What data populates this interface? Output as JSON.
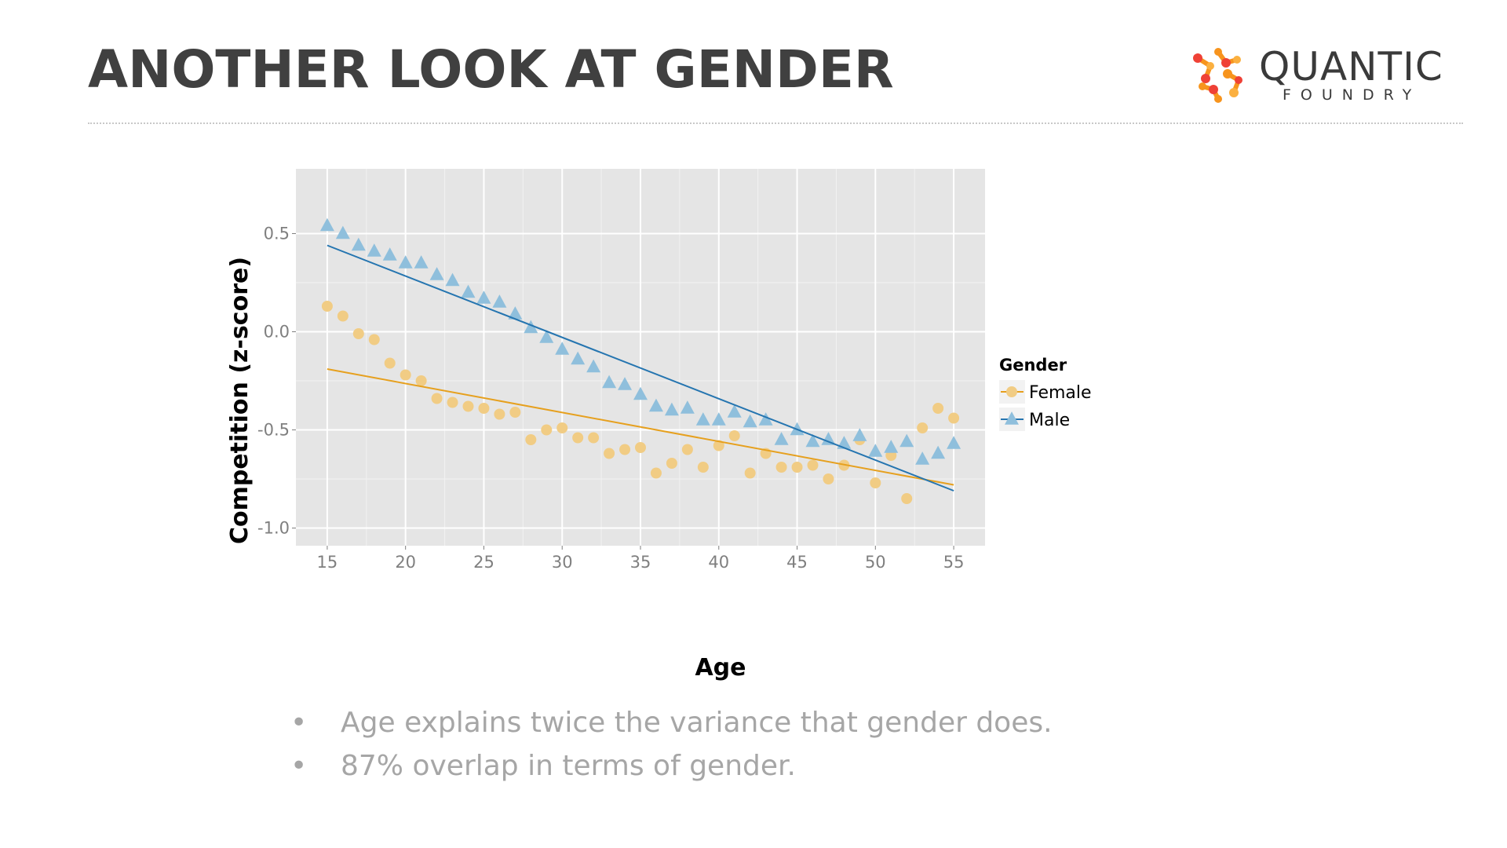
{
  "slide": {
    "title": "ANOTHER LOOK AT GENDER",
    "bullets": [
      "Age explains twice the variance that gender does.",
      "87% overlap in terms of gender."
    ]
  },
  "logo": {
    "word": "QUANTIC",
    "sub": "FOUNDRY",
    "colors": [
      "#f7941d",
      "#ef4136",
      "#fbb040"
    ]
  },
  "chart_data": {
    "type": "scatter",
    "title": "",
    "xlabel": "Age",
    "ylabel": "Competition (z-score)",
    "xlim": [
      13,
      57
    ],
    "ylim": [
      -1.09,
      0.83
    ],
    "x_ticks": [
      15,
      20,
      25,
      30,
      35,
      40,
      45,
      50,
      55
    ],
    "y_ticks": [
      0.5,
      0.0,
      -0.5,
      -1.0
    ],
    "y_tick_labels": [
      "0.5",
      "0.0",
      "-0.5",
      "-1.0"
    ],
    "grid": true,
    "legend": {
      "title": "Gender",
      "placement": "right"
    },
    "series": [
      {
        "name": "Female",
        "marker": "circle",
        "color": "#e6a01e",
        "point_color": "#f1cc84",
        "x": [
          15,
          16,
          17,
          18,
          19,
          20,
          21,
          22,
          23,
          24,
          25,
          26,
          27,
          28,
          29,
          30,
          31,
          32,
          33,
          34,
          35,
          36,
          37,
          38,
          39,
          40,
          41,
          42,
          43,
          44,
          45,
          46,
          47,
          48,
          49,
          50,
          51,
          52,
          53,
          54,
          55
        ],
        "y": [
          0.13,
          0.08,
          -0.01,
          -0.04,
          -0.16,
          -0.22,
          -0.25,
          -0.34,
          -0.36,
          -0.38,
          -0.39,
          -0.42,
          -0.41,
          -0.55,
          -0.5,
          -0.49,
          -0.54,
          -0.54,
          -0.62,
          -0.6,
          -0.59,
          -0.72,
          -0.67,
          -0.6,
          -0.69,
          -0.58,
          -0.53,
          -0.72,
          -0.62,
          -0.69,
          -0.69,
          -0.68,
          -0.75,
          -0.68,
          -0.55,
          -0.77,
          -0.63,
          -0.85,
          -0.49,
          -0.39,
          -0.44
        ],
        "trend": {
          "x": [
            15,
            55
          ],
          "y": [
            -0.19,
            -0.78
          ]
        }
      },
      {
        "name": "Male",
        "marker": "triangle",
        "color": "#2575b0",
        "point_color": "#8fbfdc",
        "x": [
          15,
          16,
          17,
          18,
          19,
          20,
          21,
          22,
          23,
          24,
          25,
          26,
          27,
          28,
          29,
          30,
          31,
          32,
          33,
          34,
          35,
          36,
          37,
          38,
          39,
          40,
          41,
          42,
          43,
          44,
          45,
          46,
          47,
          48,
          49,
          50,
          51,
          52,
          53,
          54,
          55
        ],
        "y": [
          0.54,
          0.5,
          0.44,
          0.41,
          0.39,
          0.35,
          0.35,
          0.29,
          0.26,
          0.2,
          0.17,
          0.15,
          0.09,
          0.02,
          -0.03,
          -0.09,
          -0.14,
          -0.18,
          -0.26,
          -0.27,
          -0.32,
          -0.38,
          -0.4,
          -0.39,
          -0.45,
          -0.45,
          -0.41,
          -0.46,
          -0.45,
          -0.55,
          -0.5,
          -0.56,
          -0.55,
          -0.57,
          -0.53,
          -0.61,
          -0.59,
          -0.56,
          -0.65,
          -0.62,
          -0.57
        ],
        "trend": {
          "x": [
            15,
            55
          ],
          "y": [
            0.44,
            -0.81
          ]
        }
      }
    ]
  }
}
